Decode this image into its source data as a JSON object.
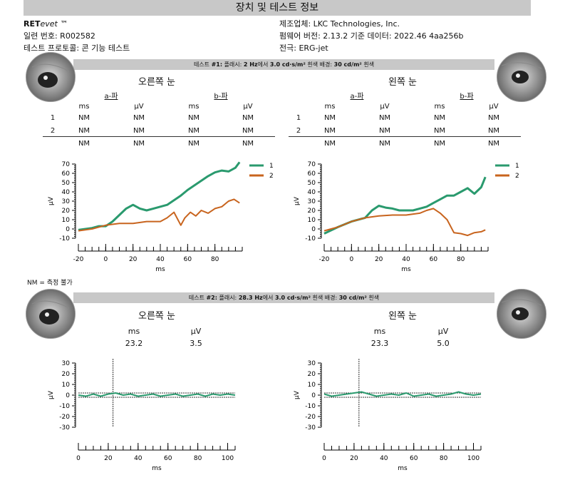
{
  "header": {
    "title": "장치 및 테스트 정보"
  },
  "device": {
    "brand_bold": "RET",
    "brand_italic": "evet",
    "brand_tm": " ™",
    "serial": "일련 번호: R002582",
    "protocol": "테스트 프로토콜: 콘 기능 테스트",
    "manufacturer": "제조업체: LKC Technologies, Inc.",
    "firmware": "펌웨어 버전: 2.13.2 기준 데이터: 2022.46 4aa256b",
    "electrode": "전극: ERG-jet"
  },
  "test1": {
    "prefix": "테스트 ",
    "num": "#1:",
    "flash_label": "  플래시: ",
    "flash_hz": "2 Hz",
    "flash_mid": "에서 ",
    "flash_val": "3.0 cd·s/m²",
    "flash_tail": " 흰색   배경: ",
    "bg_val": "30 cd/m²",
    "bg_tail": " 흰색",
    "right_eye": "오른쪽 눈",
    "left_eye": "왼쪽 눈",
    "a_wave": "a-파",
    "b_wave": "b-파",
    "col_ms": "ms",
    "col_uv": "μV",
    "rows": [
      {
        "label": "1",
        "vals": [
          "NM",
          "NM",
          "NM",
          "NM"
        ]
      },
      {
        "label": "2",
        "vals": [
          "NM",
          "NM",
          "NM",
          "NM"
        ]
      },
      {
        "label": "",
        "vals": [
          "NM",
          "NM",
          "NM",
          "NM"
        ]
      }
    ]
  },
  "footnote": "NM = 측정 불가",
  "test2": {
    "prefix": "테스트 ",
    "num": "#2:",
    "flash_label": "  플래시: ",
    "flash_hz": "28.3 Hz",
    "flash_mid": "에서 ",
    "flash_val": "3.0 cd·s/m²",
    "flash_tail": " 흰색   배경: ",
    "bg_val": "30 cd/m²",
    "bg_tail": " 흰색",
    "right_eye": "오른쪽 눈",
    "left_eye": "왼쪽 눈",
    "col_ms": "ms",
    "col_uv": "μV",
    "right_ms": "23.2",
    "right_uv": "3.5",
    "left_ms": "23.3",
    "left_uv": "5.0"
  },
  "colors": {
    "series1": "#2a9a6e",
    "series2": "#c8641e",
    "band": "#c8c8c8"
  },
  "icons": [
    "eye-photo"
  ],
  "chart_data": [
    {
      "type": "line",
      "id": "t1-right",
      "xlabel": "ms",
      "ylabel": "μV",
      "xlim": [
        -20,
        100
      ],
      "ylim": [
        -10,
        70
      ],
      "xticks": [
        -20,
        0,
        20,
        40,
        60,
        80
      ],
      "yticks": [
        70,
        60,
        50,
        40,
        30,
        20,
        10,
        0,
        -10
      ],
      "legend": "top-right",
      "series": [
        {
          "name": "1",
          "color": "#2a9a6e",
          "x": [
            -20,
            -10,
            -5,
            0,
            5,
            10,
            15,
            20,
            25,
            30,
            35,
            40,
            45,
            50,
            55,
            60,
            65,
            70,
            75,
            80,
            85,
            90,
            95,
            98
          ],
          "y": [
            -1,
            1,
            3,
            3,
            8,
            15,
            22,
            26,
            22,
            20,
            22,
            24,
            26,
            31,
            36,
            42,
            47,
            52,
            57,
            61,
            63,
            62,
            66,
            72
          ]
        },
        {
          "name": "2",
          "color": "#c8641e",
          "x": [
            -20,
            -10,
            0,
            10,
            20,
            30,
            40,
            45,
            50,
            55,
            58,
            62,
            66,
            70,
            75,
            80,
            85,
            90,
            94,
            98
          ],
          "y": [
            -2,
            0,
            4,
            6,
            6,
            8,
            8,
            12,
            18,
            4,
            12,
            18,
            14,
            20,
            17,
            22,
            24,
            30,
            32,
            28
          ]
        }
      ]
    },
    {
      "type": "line",
      "id": "t1-left",
      "xlabel": "ms",
      "ylabel": "μV",
      "xlim": [
        -20,
        100
      ],
      "ylim": [
        -10,
        70
      ],
      "xticks": [
        -20,
        0,
        20,
        40,
        60,
        80
      ],
      "yticks": [
        70,
        60,
        50,
        40,
        30,
        20,
        10,
        0,
        -10
      ],
      "legend": "top-right",
      "series": [
        {
          "name": "1",
          "color": "#2a9a6e",
          "x": [
            -20,
            -10,
            0,
            10,
            15,
            20,
            25,
            30,
            35,
            40,
            45,
            50,
            55,
            60,
            65,
            70,
            75,
            80,
            85,
            90,
            95,
            98
          ],
          "y": [
            -5,
            2,
            8,
            12,
            20,
            25,
            23,
            22,
            20,
            20,
            20,
            22,
            24,
            28,
            32,
            36,
            36,
            40,
            44,
            38,
            45,
            56
          ]
        },
        {
          "name": "2",
          "color": "#c8641e",
          "x": [
            -20,
            -10,
            0,
            10,
            20,
            30,
            40,
            50,
            55,
            60,
            65,
            70,
            75,
            80,
            85,
            90,
            95,
            98
          ],
          "y": [
            -2,
            2,
            8,
            12,
            14,
            15,
            15,
            17,
            20,
            22,
            17,
            10,
            -4,
            -5,
            -7,
            -4,
            -3,
            -1
          ]
        }
      ]
    },
    {
      "type": "line",
      "id": "t2-right",
      "xlabel": "ms",
      "ylabel": "μV",
      "xlim": [
        0,
        105
      ],
      "ylim": [
        -30,
        30
      ],
      "xticks": [
        0,
        20,
        40,
        60,
        80,
        100
      ],
      "yticks": [
        30,
        20,
        10,
        0,
        -10,
        -20,
        -30
      ],
      "series": [
        {
          "color": "#2a9a6e",
          "x": [
            0,
            5,
            10,
            15,
            20,
            25,
            30,
            35,
            40,
            45,
            50,
            55,
            60,
            65,
            70,
            75,
            80,
            85,
            90,
            95,
            100,
            105
          ],
          "y": [
            0,
            -1,
            1,
            -1,
            1,
            2,
            0,
            1,
            -1,
            0,
            1,
            -1,
            0,
            1,
            -1,
            0,
            1,
            -1,
            1,
            0,
            1,
            0
          ]
        }
      ]
    },
    {
      "type": "line",
      "id": "t2-left",
      "xlabel": "ms",
      "ylabel": "μV",
      "xlim": [
        0,
        105
      ],
      "ylim": [
        -30,
        30
      ],
      "xticks": [
        0,
        20,
        40,
        60,
        80,
        100
      ],
      "yticks": [
        30,
        20,
        10,
        0,
        -10,
        -20,
        -30
      ],
      "series": [
        {
          "color": "#2a9a6e",
          "x": [
            0,
            5,
            10,
            15,
            20,
            25,
            30,
            35,
            40,
            45,
            50,
            55,
            60,
            65,
            70,
            75,
            80,
            85,
            90,
            95,
            100,
            105
          ],
          "y": [
            1,
            -1,
            0,
            1,
            2,
            3,
            1,
            -1,
            0,
            1,
            0,
            2,
            -1,
            0,
            1,
            -1,
            0,
            1,
            3,
            1,
            0,
            1
          ]
        }
      ]
    }
  ]
}
